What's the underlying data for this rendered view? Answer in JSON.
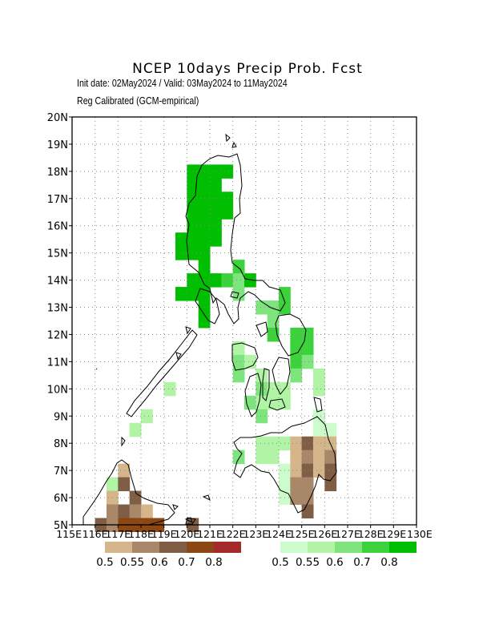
{
  "title": "NCEP 10days Precip Prob. Fcst",
  "subtitle_dates": "Init date: 02May2024 / Valid: 03May2024 to 11May2024",
  "subtitle_method": "Reg Calibrated (GCM-empirical)",
  "map": {
    "region": "Philippines",
    "lon_range": [
      115,
      130
    ],
    "lat_range": [
      5,
      20
    ],
    "lat_labels": [
      "5N",
      "6N",
      "7N",
      "8N",
      "9N",
      "10N",
      "11N",
      "12N",
      "13N",
      "14N",
      "15N",
      "16N",
      "17N",
      "18N",
      "19N",
      "20N"
    ],
    "lon_labels": [
      "115E",
      "116E",
      "117E",
      "118E",
      "119E",
      "120E",
      "121E",
      "122E",
      "123E",
      "124E",
      "125E",
      "126E",
      "127E",
      "128E",
      "129E",
      "130E"
    ],
    "grid": "dotted"
  },
  "legend_below": {
    "labels": [
      "0.5",
      "0.55",
      "0.6",
      "0.7",
      "0.8"
    ],
    "colors": [
      "#d5b68a",
      "#a98769",
      "#7f5e45",
      "#8c4712",
      "#a52a2a"
    ]
  },
  "legend_above": {
    "labels": [
      "0.5",
      "0.55",
      "0.6",
      "0.7",
      "0.8"
    ],
    "colors": [
      "#ccfccc",
      "#b2f4a6",
      "#7ee47e",
      "#3cd23c",
      "#00be00"
    ]
  },
  "chart_data": {
    "type": "heatmap",
    "title": "NCEP 10days Precip Prob. Fcst",
    "x_axis": "longitude (E)",
    "y_axis": "latitude (N)",
    "xlim": [
      115,
      130
    ],
    "ylim": [
      5,
      20
    ],
    "cell_size_deg": 0.5,
    "cells_above": [
      {
        "lon": 120.25,
        "lat": 18.0,
        "p": 0.8
      },
      {
        "lon": 120.75,
        "lat": 18.0,
        "p": 0.8
      },
      {
        "lon": 121.25,
        "lat": 18.0,
        "p": 0.8
      },
      {
        "lon": 121.75,
        "lat": 18.0,
        "p": 0.8
      },
      {
        "lon": 120.25,
        "lat": 17.5,
        "p": 0.8
      },
      {
        "lon": 120.75,
        "lat": 17.5,
        "p": 0.8
      },
      {
        "lon": 121.25,
        "lat": 17.5,
        "p": 0.8
      },
      {
        "lon": 120.25,
        "lat": 17.0,
        "p": 0.8
      },
      {
        "lon": 120.75,
        "lat": 17.0,
        "p": 0.8
      },
      {
        "lon": 121.25,
        "lat": 17.0,
        "p": 0.8
      },
      {
        "lon": 121.75,
        "lat": 17.0,
        "p": 0.8
      },
      {
        "lon": 120.25,
        "lat": 16.5,
        "p": 0.8
      },
      {
        "lon": 120.75,
        "lat": 16.5,
        "p": 0.8
      },
      {
        "lon": 121.25,
        "lat": 16.5,
        "p": 0.8
      },
      {
        "lon": 121.75,
        "lat": 16.5,
        "p": 0.8
      },
      {
        "lon": 120.25,
        "lat": 16.0,
        "p": 0.8
      },
      {
        "lon": 120.75,
        "lat": 16.0,
        "p": 0.8
      },
      {
        "lon": 121.25,
        "lat": 16.0,
        "p": 0.8
      },
      {
        "lon": 119.75,
        "lat": 15.5,
        "p": 0.8
      },
      {
        "lon": 120.25,
        "lat": 15.5,
        "p": 0.8
      },
      {
        "lon": 120.75,
        "lat": 15.5,
        "p": 0.8
      },
      {
        "lon": 121.25,
        "lat": 15.5,
        "p": 0.8
      },
      {
        "lon": 119.75,
        "lat": 15.0,
        "p": 0.8
      },
      {
        "lon": 120.25,
        "lat": 15.0,
        "p": 0.8
      },
      {
        "lon": 120.75,
        "lat": 15.0,
        "p": 0.8
      },
      {
        "lon": 120.75,
        "lat": 14.5,
        "p": 0.8
      },
      {
        "lon": 122.25,
        "lat": 14.5,
        "p": 0.7
      },
      {
        "lon": 120.25,
        "lat": 14.0,
        "p": 0.8
      },
      {
        "lon": 120.75,
        "lat": 14.0,
        "p": 0.8
      },
      {
        "lon": 121.25,
        "lat": 14.0,
        "p": 0.8
      },
      {
        "lon": 121.75,
        "lat": 14.0,
        "p": 0.7
      },
      {
        "lon": 122.25,
        "lat": 14.0,
        "p": 0.6
      },
      {
        "lon": 122.75,
        "lat": 14.0,
        "p": 0.8
      },
      {
        "lon": 119.75,
        "lat": 13.5,
        "p": 0.8
      },
      {
        "lon": 120.25,
        "lat": 13.5,
        "p": 0.8
      },
      {
        "lon": 120.75,
        "lat": 13.5,
        "p": 0.8
      },
      {
        "lon": 122.25,
        "lat": 13.5,
        "p": 0.6
      },
      {
        "lon": 124.25,
        "lat": 13.5,
        "p": 0.7
      },
      {
        "lon": 120.75,
        "lat": 13.0,
        "p": 0.8
      },
      {
        "lon": 123.25,
        "lat": 13.0,
        "p": 0.6
      },
      {
        "lon": 123.75,
        "lat": 13.0,
        "p": 0.6
      },
      {
        "lon": 124.25,
        "lat": 13.0,
        "p": 0.7
      },
      {
        "lon": 120.75,
        "lat": 12.5,
        "p": 0.8
      },
      {
        "lon": 123.75,
        "lat": 12.5,
        "p": 0.6
      },
      {
        "lon": 124.75,
        "lat": 12.0,
        "p": 0.7
      },
      {
        "lon": 125.25,
        "lat": 12.0,
        "p": 0.7
      },
      {
        "lon": 123.75,
        "lat": 12.0,
        "p": 0.7
      },
      {
        "lon": 122.25,
        "lat": 11.5,
        "p": 0.55
      },
      {
        "lon": 124.75,
        "lat": 11.5,
        "p": 0.7
      },
      {
        "lon": 125.25,
        "lat": 11.5,
        "p": 0.7
      },
      {
        "lon": 122.25,
        "lat": 11.0,
        "p": 0.6
      },
      {
        "lon": 122.75,
        "lat": 11.0,
        "p": 0.55
      },
      {
        "lon": 124.75,
        "lat": 11.0,
        "p": 0.7
      },
      {
        "lon": 125.25,
        "lat": 11.0,
        "p": 0.6
      },
      {
        "lon": 122.25,
        "lat": 10.5,
        "p": 0.6
      },
      {
        "lon": 123.25,
        "lat": 10.5,
        "p": 0.55
      },
      {
        "lon": 124.75,
        "lat": 10.5,
        "p": 0.6
      },
      {
        "lon": 125.75,
        "lat": 10.5,
        "p": 0.55
      },
      {
        "lon": 123.25,
        "lat": 10.0,
        "p": 0.6
      },
      {
        "lon": 123.75,
        "lat": 10.0,
        "p": 0.55
      },
      {
        "lon": 124.25,
        "lat": 10.0,
        "p": 0.55
      },
      {
        "lon": 125.75,
        "lat": 10.0,
        "p": 0.55
      },
      {
        "lon": 122.75,
        "lat": 9.5,
        "p": 0.6
      },
      {
        "lon": 123.25,
        "lat": 9.5,
        "p": 0.55
      },
      {
        "lon": 123.75,
        "lat": 9.5,
        "p": 0.55
      },
      {
        "lon": 124.25,
        "lat": 9.5,
        "p": 0.55
      },
      {
        "lon": 123.25,
        "lat": 9.0,
        "p": 0.6
      },
      {
        "lon": 125.75,
        "lat": 9.0,
        "p": 0.5
      },
      {
        "lon": 118.25,
        "lat": 9.0,
        "p": 0.55
      },
      {
        "lon": 117.75,
        "lat": 8.5,
        "p": 0.55
      },
      {
        "lon": 119.25,
        "lat": 10.0,
        "p": 0.55
      },
      {
        "lon": 123.25,
        "lat": 8.0,
        "p": 0.55
      },
      {
        "lon": 123.75,
        "lat": 8.0,
        "p": 0.55
      },
      {
        "lon": 124.25,
        "lat": 8.0,
        "p": 0.55
      },
      {
        "lon": 125.75,
        "lat": 8.5,
        "p": 0.5
      },
      {
        "lon": 126.25,
        "lat": 8.5,
        "p": 0.5
      },
      {
        "lon": 122.25,
        "lat": 7.5,
        "p": 0.6
      },
      {
        "lon": 123.25,
        "lat": 7.5,
        "p": 0.55
      },
      {
        "lon": 123.75,
        "lat": 7.5,
        "p": 0.55
      },
      {
        "lon": 124.25,
        "lat": 7.0,
        "p": 0.5
      },
      {
        "lon": 124.25,
        "lat": 6.5,
        "p": 0.5
      },
      {
        "lon": 124.25,
        "lat": 6.0,
        "p": 0.5
      },
      {
        "lon": 124.75,
        "lat": 6.5,
        "p": 0.5
      },
      {
        "lon": 116.75,
        "lat": 6.5,
        "p": 0.55
      }
    ],
    "cells_below": [
      {
        "lon": 124.75,
        "lat": 8.0,
        "p": 0.5
      },
      {
        "lon": 125.25,
        "lat": 8.0,
        "p": 0.6
      },
      {
        "lon": 125.75,
        "lat": 8.0,
        "p": 0.5
      },
      {
        "lon": 126.25,
        "lat": 8.0,
        "p": 0.5
      },
      {
        "lon": 124.75,
        "lat": 7.5,
        "p": 0.5
      },
      {
        "lon": 125.25,
        "lat": 7.5,
        "p": 0.55
      },
      {
        "lon": 125.75,
        "lat": 7.5,
        "p": 0.5
      },
      {
        "lon": 126.25,
        "lat": 7.5,
        "p": 0.55
      },
      {
        "lon": 124.75,
        "lat": 7.0,
        "p": 0.5
      },
      {
        "lon": 125.25,
        "lat": 7.0,
        "p": 0.6
      },
      {
        "lon": 125.75,
        "lat": 7.0,
        "p": 0.5
      },
      {
        "lon": 126.25,
        "lat": 7.0,
        "p": 0.6
      },
      {
        "lon": 124.75,
        "lat": 6.5,
        "p": 0.55
      },
      {
        "lon": 125.25,
        "lat": 6.5,
        "p": 0.55
      },
      {
        "lon": 126.25,
        "lat": 6.5,
        "p": 0.6
      },
      {
        "lon": 124.75,
        "lat": 6.0,
        "p": 0.55
      },
      {
        "lon": 125.25,
        "lat": 6.0,
        "p": 0.55
      },
      {
        "lon": 125.25,
        "lat": 5.5,
        "p": 0.6
      },
      {
        "lon": 117.25,
        "lat": 7.0,
        "p": 0.5
      },
      {
        "lon": 116.75,
        "lat": 6.0,
        "p": 0.5
      },
      {
        "lon": 117.25,
        "lat": 6.5,
        "p": 0.6
      },
      {
        "lon": 117.75,
        "lat": 6.0,
        "p": 0.6
      },
      {
        "lon": 116.75,
        "lat": 5.5,
        "p": 0.55
      },
      {
        "lon": 117.25,
        "lat": 5.5,
        "p": 0.6
      },
      {
        "lon": 117.75,
        "lat": 5.5,
        "p": 0.55
      },
      {
        "lon": 118.25,
        "lat": 5.5,
        "p": 0.5
      },
      {
        "lon": 116.25,
        "lat": 5.0,
        "p": 0.6
      },
      {
        "lon": 116.75,
        "lat": 5.0,
        "p": 0.55
      },
      {
        "lon": 117.25,
        "lat": 5.0,
        "p": 0.7
      },
      {
        "lon": 117.75,
        "lat": 5.0,
        "p": 0.7
      },
      {
        "lon": 118.25,
        "lat": 5.0,
        "p": 0.7
      },
      {
        "lon": 118.75,
        "lat": 5.0,
        "p": 0.7
      },
      {
        "lon": 120.25,
        "lat": 5.0,
        "p": 0.6
      }
    ]
  }
}
